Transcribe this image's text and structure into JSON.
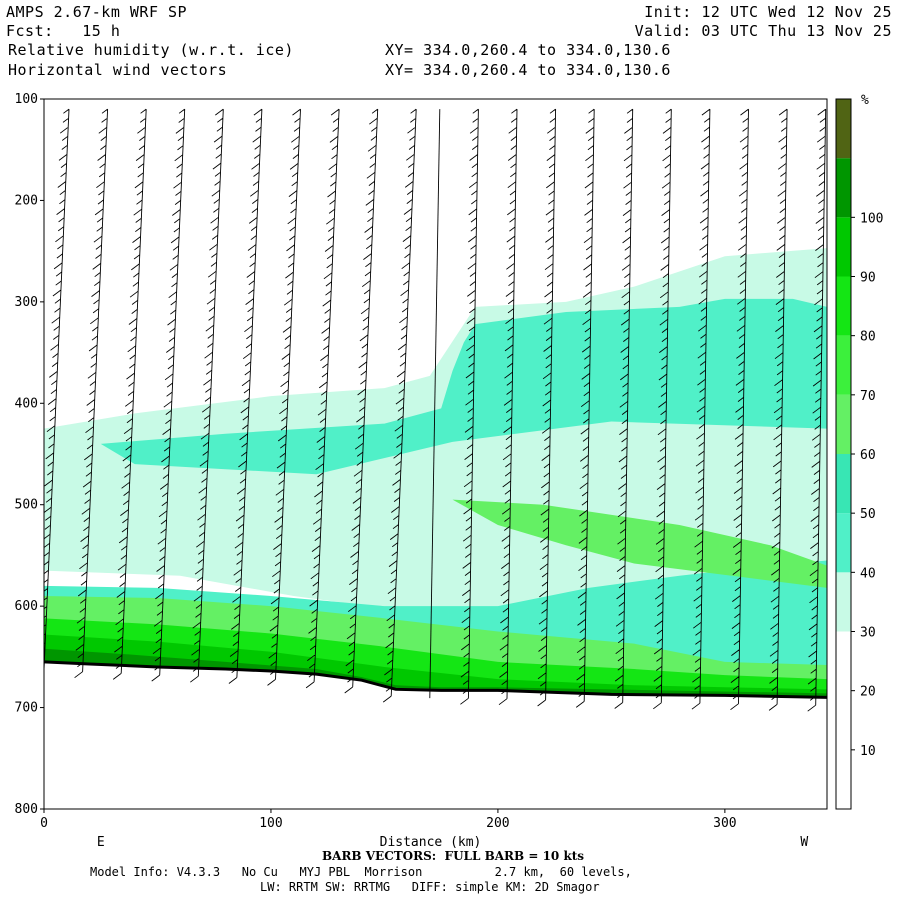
{
  "header": {
    "title": "AMPS 2.67-km WRF SP",
    "forecast": "Fcst:   15 h",
    "init": "Init: 12 UTC Wed 12 Nov 25",
    "valid": "Valid: 03 UTC Thu 13 Nov 25",
    "field1": "Relative humidity (w.r.t. ice)",
    "field2": "Horizontal wind vectors",
    "xy1": "XY= 334.0,260.4 to 334.0,130.6",
    "xy2": "XY= 334.0,260.4 to 334.0,130.6"
  },
  "footer": {
    "barb": "BARB VECTORS:  FULL BARB = 10 kts",
    "model_info": "Model Info: V4.3.3   No Cu   MYJ PBL  Morrison          2.7 km,  60 levels,",
    "physics": "LW: RRTM SW: RRTMG   DIFF: simple KM: 2D Smagor"
  },
  "chart_data": {
    "type": "heatmap",
    "xlabel": "Distance (km)",
    "x_left_label": "E",
    "x_right_label": "W",
    "xlim": [
      0,
      345
    ],
    "ylim": [
      800,
      100
    ],
    "x_ticks": [
      0,
      100,
      200,
      300
    ],
    "y_ticks": [
      100,
      200,
      300,
      400,
      500,
      600,
      700,
      800
    ],
    "colorbar": {
      "unit": "%",
      "levels": [
        10,
        20,
        30,
        40,
        50,
        60,
        70,
        80,
        90,
        100
      ],
      "colors": [
        "#ffffff",
        "#ffffff",
        "#ffffff",
        "#c8fae6",
        "#50f0c8",
        "#38e6b4",
        "#64f064",
        "#3cf03c",
        "#14e614",
        "#00c800",
        "#009600",
        "#506414"
      ]
    },
    "terrain_surface": [
      [
        0,
        655
      ],
      [
        20,
        657
      ],
      [
        50,
        660
      ],
      [
        80,
        662
      ],
      [
        100,
        664
      ],
      [
        120,
        667
      ],
      [
        140,
        673
      ],
      [
        155,
        682
      ],
      [
        175,
        683
      ],
      [
        200,
        683
      ],
      [
        250,
        687
      ],
      [
        300,
        688
      ],
      [
        345,
        690
      ]
    ],
    "rh_regions": [
      {
        "level": 30,
        "polygon": [
          [
            0,
            425
          ],
          [
            40,
            410
          ],
          [
            100,
            393
          ],
          [
            150,
            385
          ],
          [
            170,
            373
          ],
          [
            190,
            305
          ],
          [
            230,
            300
          ],
          [
            260,
            285
          ],
          [
            300,
            255
          ],
          [
            345,
            247
          ],
          [
            345,
            605
          ],
          [
            200,
            605
          ],
          [
            160,
            605
          ],
          [
            110,
            590
          ],
          [
            60,
            570
          ],
          [
            0,
            565
          ]
        ]
      },
      {
        "level": 40,
        "polygon": [
          [
            190,
            322
          ],
          [
            230,
            310
          ],
          [
            280,
            305
          ],
          [
            300,
            297
          ],
          [
            330,
            297
          ],
          [
            345,
            305
          ],
          [
            345,
            700
          ],
          [
            0,
            700
          ],
          [
            0,
            580
          ],
          [
            50,
            582
          ],
          [
            100,
            590
          ],
          [
            150,
            600
          ],
          [
            200,
            600
          ],
          [
            240,
            582
          ],
          [
            280,
            570
          ],
          [
            320,
            560
          ],
          [
            345,
            555
          ],
          [
            345,
            425
          ],
          [
            250,
            418
          ],
          [
            180,
            438
          ],
          [
            120,
            470
          ],
          [
            80,
            465
          ],
          [
            40,
            460
          ],
          [
            25,
            440
          ],
          [
            80,
            430
          ],
          [
            150,
            420
          ],
          [
            175,
            405
          ],
          [
            180,
            368
          ],
          [
            185,
            340
          ]
        ]
      },
      {
        "level": 40,
        "polygon": [
          [
            275,
            330
          ],
          [
            300,
            310
          ],
          [
            335,
            310
          ],
          [
            345,
            330
          ],
          [
            330,
            360
          ],
          [
            300,
            370
          ],
          [
            280,
            355
          ]
        ]
      },
      {
        "level": 60,
        "polygon": [
          [
            0,
            590
          ],
          [
            50,
            592
          ],
          [
            100,
            600
          ],
          [
            150,
            612
          ],
          [
            200,
            625
          ],
          [
            260,
            637
          ],
          [
            300,
            655
          ],
          [
            345,
            658
          ],
          [
            345,
            700
          ],
          [
            0,
            700
          ]
        ]
      },
      {
        "level": 60,
        "polygon": [
          [
            180,
            495
          ],
          [
            220,
            500
          ],
          [
            280,
            520
          ],
          [
            320,
            540
          ],
          [
            345,
            560
          ],
          [
            345,
            582
          ],
          [
            310,
            572
          ],
          [
            260,
            558
          ],
          [
            230,
            540
          ],
          [
            200,
            520
          ]
        ]
      },
      {
        "level": 80,
        "polygon": [
          [
            0,
            612
          ],
          [
            50,
            618
          ],
          [
            100,
            627
          ],
          [
            150,
            640
          ],
          [
            200,
            655
          ],
          [
            260,
            662
          ],
          [
            300,
            668
          ],
          [
            345,
            672
          ],
          [
            345,
            700
          ],
          [
            0,
            700
          ]
        ]
      },
      {
        "level": 90,
        "polygon": [
          [
            0,
            628
          ],
          [
            50,
            635
          ],
          [
            100,
            645
          ],
          [
            150,
            660
          ],
          [
            200,
            672
          ],
          [
            260,
            678
          ],
          [
            300,
            680
          ],
          [
            345,
            682
          ],
          [
            345,
            700
          ],
          [
            0,
            700
          ]
        ]
      },
      {
        "level": 100,
        "polygon": [
          [
            0,
            642
          ],
          [
            40,
            648
          ],
          [
            80,
            655
          ],
          [
            120,
            662
          ],
          [
            140,
            670
          ],
          [
            155,
            678
          ],
          [
            175,
            680
          ],
          [
            200,
            680
          ],
          [
            345,
            686
          ],
          [
            345,
            700
          ],
          [
            0,
            700
          ]
        ]
      }
    ],
    "barb_columns_km": [
      0,
      17,
      34,
      51,
      68,
      85,
      102,
      119,
      136,
      153,
      170,
      187,
      204,
      221,
      238,
      255,
      272,
      289,
      306,
      323,
      340
    ]
  }
}
